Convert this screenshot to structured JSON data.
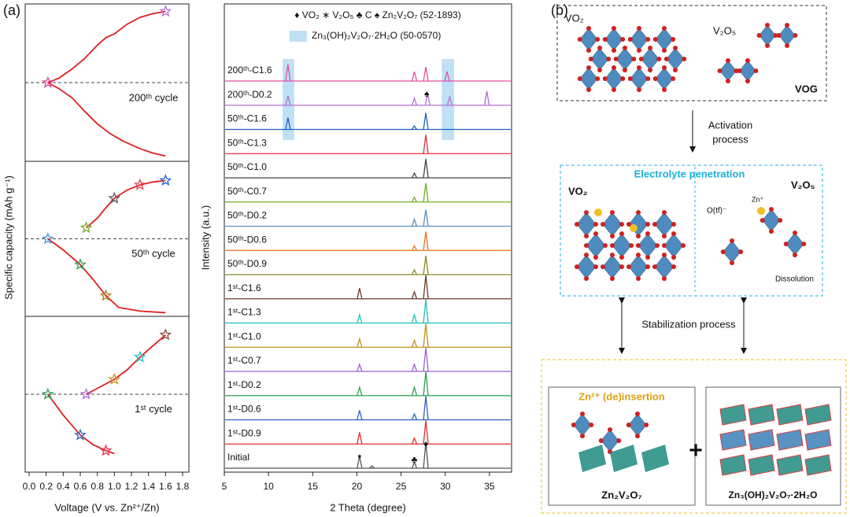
{
  "panel_labels": [
    "(a)",
    "(b)"
  ],
  "chart_data": [
    {
      "type": "cycles",
      "xlabel": "Voltage (V vs. Zn²⁺/Zn)",
      "ylabel": "Specific capacity (mAh g⁻¹)",
      "xlim": [
        0,
        1.8
      ],
      "xticks": [
        {
          "value": 0,
          "label": "0.0"
        },
        0.2,
        0.4,
        0.6,
        0.8,
        {
          "value": 1,
          "label": "1.0"
        },
        1.2,
        1.4,
        1.6,
        1.8
      ],
      "line_color": "#e02020",
      "subplots": [
        {
          "label": "200ᵗʰ cycle",
          "ylim": [
            -1.05,
            1.05
          ],
          "curves": [
            {
              "x": [
                0.22,
                0.35,
                0.5,
                0.65,
                0.8,
                0.9,
                1.0,
                1.15,
                1.3,
                1.45,
                1.6
              ],
              "y": [
                0,
                0.06,
                0.18,
                0.32,
                0.5,
                0.6,
                0.65,
                0.78,
                0.87,
                0.92,
                0.95
              ]
            },
            {
              "x": [
                0.22,
                0.35,
                0.5,
                0.65,
                0.8,
                0.95,
                1.1,
                1.3,
                1.45,
                1.6
              ],
              "y": [
                0,
                -0.08,
                -0.2,
                -0.38,
                -0.55,
                -0.68,
                -0.78,
                -0.88,
                -0.94,
                -0.98
              ]
            }
          ],
          "marker_x": [
            0.22,
            1.6
          ],
          "marker_y": [
            0,
            0.95
          ],
          "marker_colors": [
            "#e0409a",
            "#b070e0"
          ]
        },
        {
          "label": "50ᵗʰ cycle",
          "ylim": [
            -1.05,
            1.05
          ],
          "curves": [
            {
              "x": [
                0.67,
                0.8,
                0.9,
                1.0,
                1.15,
                1.3,
                1.45,
                1.6
              ],
              "y": [
                0.15,
                0.28,
                0.42,
                0.55,
                0.66,
                0.73,
                0.77,
                0.79
              ]
            },
            {
              "x": [
                0.22,
                0.4,
                0.6,
                0.75,
                0.9,
                1.05,
                1.3,
                1.6
              ],
              "y": [
                0,
                -0.15,
                -0.35,
                -0.55,
                -0.77,
                -0.93,
                -0.98,
                -1.0
              ]
            }
          ],
          "marker_x": [
            0.22,
            0.67,
            1.0,
            1.3,
            1.6,
            0.6,
            0.9
          ],
          "marker_y": [
            0,
            0.15,
            0.55,
            0.73,
            0.79,
            -0.35,
            -0.77
          ],
          "marker_colors": [
            "#5090d0",
            "#70b020",
            "#555555",
            "#e04050",
            "#2060d0",
            "#30a050",
            "#a08020"
          ]
        },
        {
          "label": "1ˢᵗ cycle",
          "ylim": [
            -1.05,
            1.05
          ],
          "curves": [
            {
              "x": [
                0.67,
                0.8,
                1.0,
                1.15,
                1.3,
                1.45,
                1.6
              ],
              "y": [
                0,
                0.08,
                0.2,
                0.33,
                0.5,
                0.65,
                0.8
              ]
            },
            {
              "x": [
                0.22,
                0.4,
                0.6,
                0.75,
                0.9,
                1.0
              ],
              "y": [
                0,
                -0.28,
                -0.55,
                -0.68,
                -0.76,
                -0.8
              ]
            }
          ],
          "marker_x": [
            0.22,
            0.6,
            0.9,
            0.67,
            1.0,
            1.3,
            1.6
          ],
          "marker_y": [
            0,
            -0.55,
            -0.76,
            0,
            0.2,
            0.5,
            0.8
          ],
          "marker_colors": [
            "#30a050",
            "#3060c0",
            "#e03050",
            "#b070e0",
            "#d09020",
            "#20c0c0",
            "#8a4a3a"
          ]
        }
      ]
    },
    {
      "type": "spectra",
      "xlabel": "2 Theta (degree)",
      "ylabel": "Intensity (a.u.)",
      "xlim": [
        5,
        37.5
      ],
      "xticks": [
        5,
        10,
        15,
        20,
        25,
        30,
        35
      ],
      "legend": [
        "♦ VO₂  ∗ V₂O₅  ♣ C  ♠ Zn₂V₂O₇ (52-1893)",
        "Zn₃(OH)₂V₂O₇·2H₂O (50-0570)"
      ],
      "highlight_color": "#bfe0f5",
      "highlight_ranges": [
        [
          11.6,
          12.9
        ],
        [
          29.6,
          31.0
        ]
      ],
      "annotations": [
        {
          "text": "♦",
          "x": 27.8
        },
        {
          "text": "*",
          "x": 20.3
        },
        {
          "text": "♣",
          "x": 26.5
        },
        {
          "text": "♠",
          "x": 27.9
        }
      ],
      "series": [
        {
          "name": "Initial",
          "color": "#555555",
          "peak_x": [
            20.3,
            21.7,
            26.5,
            27.8
          ],
          "peak_h": [
            0.5,
            0.1,
            0.25,
            1.1
          ]
        },
        {
          "name": "1ˢᵗ-D0.9",
          "color": "#e03030",
          "peak_x": [
            20.3,
            26.5,
            27.8
          ],
          "peak_h": [
            0.5,
            0.25,
            1.0
          ]
        },
        {
          "name": "1ˢᵗ-D0.6",
          "color": "#3060c0",
          "peak_x": [
            20.3,
            26.5,
            27.8
          ],
          "peak_h": [
            0.4,
            0.25,
            1.0
          ]
        },
        {
          "name": "1ˢᵗ-D0.2",
          "color": "#30a050",
          "peak_x": [
            20.3,
            26.5,
            27.8
          ],
          "peak_h": [
            0.35,
            0.35,
            1.0
          ]
        },
        {
          "name": "1ˢᵗ-C0.7",
          "color": "#a060d0",
          "peak_x": [
            20.3,
            26.5,
            27.8
          ],
          "peak_h": [
            0.3,
            0.3,
            1.0
          ]
        },
        {
          "name": "1ˢᵗ-C1.0",
          "color": "#c09020",
          "peak_x": [
            20.3,
            26.5,
            27.8
          ],
          "peak_h": [
            0.35,
            0.3,
            1.0
          ]
        },
        {
          "name": "1ˢᵗ-C1.3",
          "color": "#20c0c0",
          "peak_x": [
            20.3,
            26.5,
            27.8
          ],
          "peak_h": [
            0.35,
            0.35,
            1.0
          ]
        },
        {
          "name": "1ˢᵗ-C1.6",
          "color": "#6b3a2a",
          "peak_x": [
            20.3,
            26.5,
            27.8
          ],
          "peak_h": [
            0.45,
            0.3,
            1.0
          ]
        },
        {
          "name": "50ᵗʰ-D0.9",
          "color": "#8a8a20",
          "peak_x": [
            26.5,
            27.8
          ],
          "peak_h": [
            0.2,
            0.8
          ]
        },
        {
          "name": "50ᵗʰ-D0.6",
          "color": "#f07020",
          "peak_x": [
            26.5,
            27.8
          ],
          "peak_h": [
            0.2,
            0.8
          ]
        },
        {
          "name": "50ᵗʰ-D0.2",
          "color": "#6090c0",
          "peak_x": [
            26.5,
            27.8
          ],
          "peak_h": [
            0.3,
            0.7
          ]
        },
        {
          "name": "50ᵗʰ-C0.7",
          "color": "#70b020",
          "peak_x": [
            26.5,
            27.8
          ],
          "peak_h": [
            0.2,
            0.8
          ]
        },
        {
          "name": "50ᵗʰ-C1.0",
          "color": "#444444",
          "peak_x": [
            26.5,
            27.8
          ],
          "peak_h": [
            0.2,
            0.8
          ]
        },
        {
          "name": "50ᵗʰ-C1.3",
          "color": "#e03040",
          "peak_x": [
            27.8
          ],
          "peak_h": [
            0.8
          ]
        },
        {
          "name": "50ᵗʰ-C1.6",
          "color": "#2060c0",
          "peak_x": [
            12.2,
            26.5,
            27.8
          ],
          "peak_h": [
            0.5,
            0.15,
            0.7
          ]
        },
        {
          "name": "200ᵗʰ-D0.2",
          "color": "#b070d0",
          "peak_x": [
            12.2,
            26.5,
            28.0,
            30.5,
            34.7
          ],
          "peak_h": [
            0.4,
            0.3,
            0.5,
            0.35,
            0.6
          ]
        },
        {
          "name": "200ᵗʰ-C1.6",
          "color": "#e050a0",
          "peak_x": [
            12.2,
            26.5,
            27.8,
            30.2
          ],
          "peak_h": [
            0.7,
            0.4,
            0.6,
            0.4
          ]
        }
      ]
    }
  ],
  "diagram": {
    "vog": {
      "vo2": "VO₂",
      "v2o5": "V₂O₅",
      "label": "VOG"
    },
    "activation": [
      "Activation",
      "process"
    ],
    "penetration": {
      "title": "Electrolyte penetration",
      "vo2": "VO₂",
      "v2o5": "V₂O₅",
      "zn": "Zn⁺",
      "otf": "O(tf)⁻",
      "dissolution": "Dissolution"
    },
    "stabilization": "Stabilization process",
    "products": {
      "insertion": "Zn²⁺ (de)insertion",
      "left": "Zn₂V₂O₇",
      "plus": "+",
      "right": "Zn₃(OH)₂V₂O₇·2H₂O"
    }
  }
}
